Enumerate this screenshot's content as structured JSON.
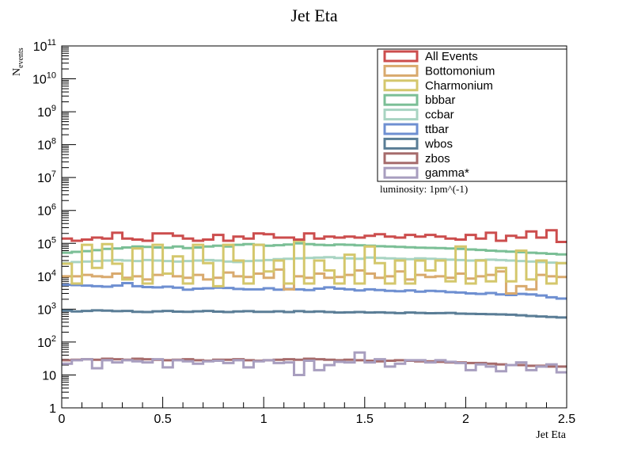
{
  "chart_data": {
    "type": "histogram",
    "title": "Jet Eta",
    "xlabel": "Jet Eta",
    "ylabel_main": "N",
    "ylabel_sub": "events",
    "xlim": [
      0,
      2.5
    ],
    "ylim_log10": [
      0,
      11
    ],
    "x_ticks": [
      "0",
      "0.5",
      "1",
      "1.5",
      "2",
      "2.5"
    ],
    "x_tick_values": [
      0,
      0.5,
      1,
      1.5,
      2,
      2.5
    ],
    "y_tick_labels": [
      {
        "exp": 0,
        "base": "1",
        "sup": ""
      },
      {
        "exp": 1,
        "base": "10",
        "sup": ""
      },
      {
        "exp": 2,
        "base": "10",
        "sup": "2"
      },
      {
        "exp": 3,
        "base": "10",
        "sup": "3"
      },
      {
        "exp": 4,
        "base": "10",
        "sup": "4"
      },
      {
        "exp": 5,
        "base": "10",
        "sup": "5"
      },
      {
        "exp": 6,
        "base": "10",
        "sup": "6"
      },
      {
        "exp": 7,
        "base": "10",
        "sup": "7"
      },
      {
        "exp": 8,
        "base": "10",
        "sup": "8"
      },
      {
        "exp": 9,
        "base": "10",
        "sup": "9"
      },
      {
        "exp": 10,
        "base": "10",
        "sup": "10"
      },
      {
        "exp": 11,
        "base": "10",
        "sup": "11"
      }
    ],
    "annotation": "luminosity: 1pm^(-1)",
    "legend_position": "top-right",
    "bins": 50,
    "series": [
      {
        "name": "All Events",
        "color": "#cc4d4d",
        "values": [
          140000,
          120000,
          130000,
          150000,
          140000,
          210000,
          140000,
          130000,
          120000,
          200000,
          200000,
          170000,
          140000,
          120000,
          130000,
          180000,
          120000,
          160000,
          140000,
          200000,
          190000,
          150000,
          150000,
          130000,
          200000,
          140000,
          160000,
          150000,
          160000,
          150000,
          170000,
          190000,
          160000,
          150000,
          180000,
          160000,
          180000,
          160000,
          140000,
          130000,
          180000,
          140000,
          210000,
          120000,
          170000,
          150000,
          230000,
          150000,
          250000,
          110000
        ]
      },
      {
        "name": "Bottomonium",
        "color": "#d9aa6e",
        "values": [
          10000,
          10000,
          11000,
          10000,
          9500,
          12000,
          9000,
          10000,
          8000,
          11000,
          12000,
          10000,
          9000,
          11000,
          8000,
          9000,
          13000,
          10000,
          9500,
          12000,
          9000,
          16000,
          4000,
          10000,
          9000,
          12000,
          9000,
          9500,
          11000,
          15000,
          12000,
          9000,
          10000,
          14000,
          8000,
          11000,
          9500,
          10000,
          9000,
          12000,
          8500,
          10000,
          11000,
          14000,
          3000,
          5000,
          4000,
          11000,
          10000,
          9500
        ]
      },
      {
        "name": "Charmonium",
        "color": "#d4c76c",
        "values": [
          24000,
          6000,
          90000,
          18000,
          95000,
          24000,
          8000,
          70000,
          6000,
          90000,
          12000,
          40000,
          6000,
          90000,
          25000,
          5000,
          90000,
          30000,
          6000,
          90000,
          14000,
          30000,
          6000,
          120000,
          6000,
          30000,
          15000,
          6000,
          45000,
          6000,
          80000,
          25000,
          6000,
          30000,
          6000,
          30000,
          15000,
          30000,
          7000,
          80000,
          6000,
          30000,
          7000,
          18000,
          7000,
          60000,
          8000,
          30000,
          6000,
          25000
        ]
      },
      {
        "name": "bbbar",
        "color": "#7bbf96",
        "values": [
          52000,
          55000,
          58000,
          62000,
          68000,
          70000,
          75000,
          80000,
          78000,
          75000,
          74000,
          80000,
          72000,
          75000,
          80000,
          85000,
          80000,
          90000,
          95000,
          90000,
          85000,
          88000,
          92000,
          100000,
          95000,
          90000,
          88000,
          92000,
          90000,
          87000,
          85000,
          82000,
          80000,
          78000,
          76000,
          74000,
          73000,
          72000,
          70000,
          68000,
          65000,
          63000,
          60000,
          58000,
          56000,
          54000,
          52000,
          50000,
          48000,
          46000
        ]
      },
      {
        "name": "ccbar",
        "color": "#a8d4c2",
        "values": [
          25000,
          27000,
          28000,
          29000,
          30000,
          31000,
          30000,
          29000,
          31000,
          30000,
          29000,
          28000,
          29000,
          30000,
          31000,
          30000,
          28000,
          27000,
          29000,
          30000,
          31000,
          33000,
          34000,
          35000,
          36000,
          37000,
          38000,
          36000,
          35000,
          34000,
          37000,
          36000,
          35000,
          34000,
          33000,
          35000,
          34000,
          33000,
          32000,
          31000,
          30000,
          31000,
          32000,
          31000,
          30000,
          29000,
          28000,
          27000,
          26000,
          25000
        ]
      },
      {
        "name": "ttbar",
        "color": "#6e8fd1",
        "values": [
          5500,
          5400,
          5200,
          5000,
          4800,
          5200,
          6200,
          5000,
          4700,
          4600,
          4800,
          4500,
          3900,
          4200,
          4300,
          4500,
          4400,
          4100,
          4000,
          4000,
          4300,
          3900,
          4100,
          4000,
          3800,
          4200,
          4600,
          4200,
          4000,
          3700,
          4000,
          3800,
          3600,
          3500,
          3700,
          3400,
          3600,
          3500,
          3300,
          3200,
          3000,
          2900,
          3100,
          2800,
          2700,
          2900,
          2800,
          2600,
          2300,
          2100
        ]
      },
      {
        "name": "wbos",
        "color": "#5a7d96",
        "values": [
          900,
          850,
          880,
          920,
          900,
          870,
          880,
          830,
          820,
          860,
          880,
          840,
          830,
          860,
          880,
          840,
          820,
          850,
          870,
          830,
          830,
          860,
          820,
          870,
          830,
          850,
          820,
          790,
          800,
          820,
          790,
          800,
          780,
          760,
          790,
          770,
          750,
          760,
          770,
          730,
          720,
          710,
          700,
          690,
          680,
          650,
          620,
          600,
          580,
          560
        ]
      },
      {
        "name": "zbos",
        "color": "#a66b6b",
        "values": [
          28,
          29,
          30,
          29,
          31,
          30,
          29,
          31,
          30,
          29,
          28,
          29,
          30,
          28,
          27,
          29,
          29,
          30,
          28,
          27,
          28,
          29,
          30,
          29,
          31,
          30,
          29,
          28,
          29,
          28,
          27,
          26,
          27,
          28,
          27,
          26,
          26,
          25,
          24,
          24,
          23,
          23,
          22,
          21,
          20,
          20,
          19,
          19,
          18,
          18
        ]
      },
      {
        "name": "gamma*",
        "color": "#a89ebf",
        "values": [
          22,
          28,
          30,
          16,
          28,
          24,
          28,
          26,
          24,
          30,
          17,
          28,
          26,
          22,
          26,
          27,
          23,
          28,
          17,
          26,
          28,
          23,
          24,
          10,
          27,
          14,
          20,
          25,
          24,
          48,
          24,
          30,
          18,
          22,
          28,
          28,
          24,
          28,
          25,
          23,
          14,
          21,
          18,
          13,
          20,
          24,
          14,
          18,
          21,
          12
        ]
      }
    ]
  }
}
